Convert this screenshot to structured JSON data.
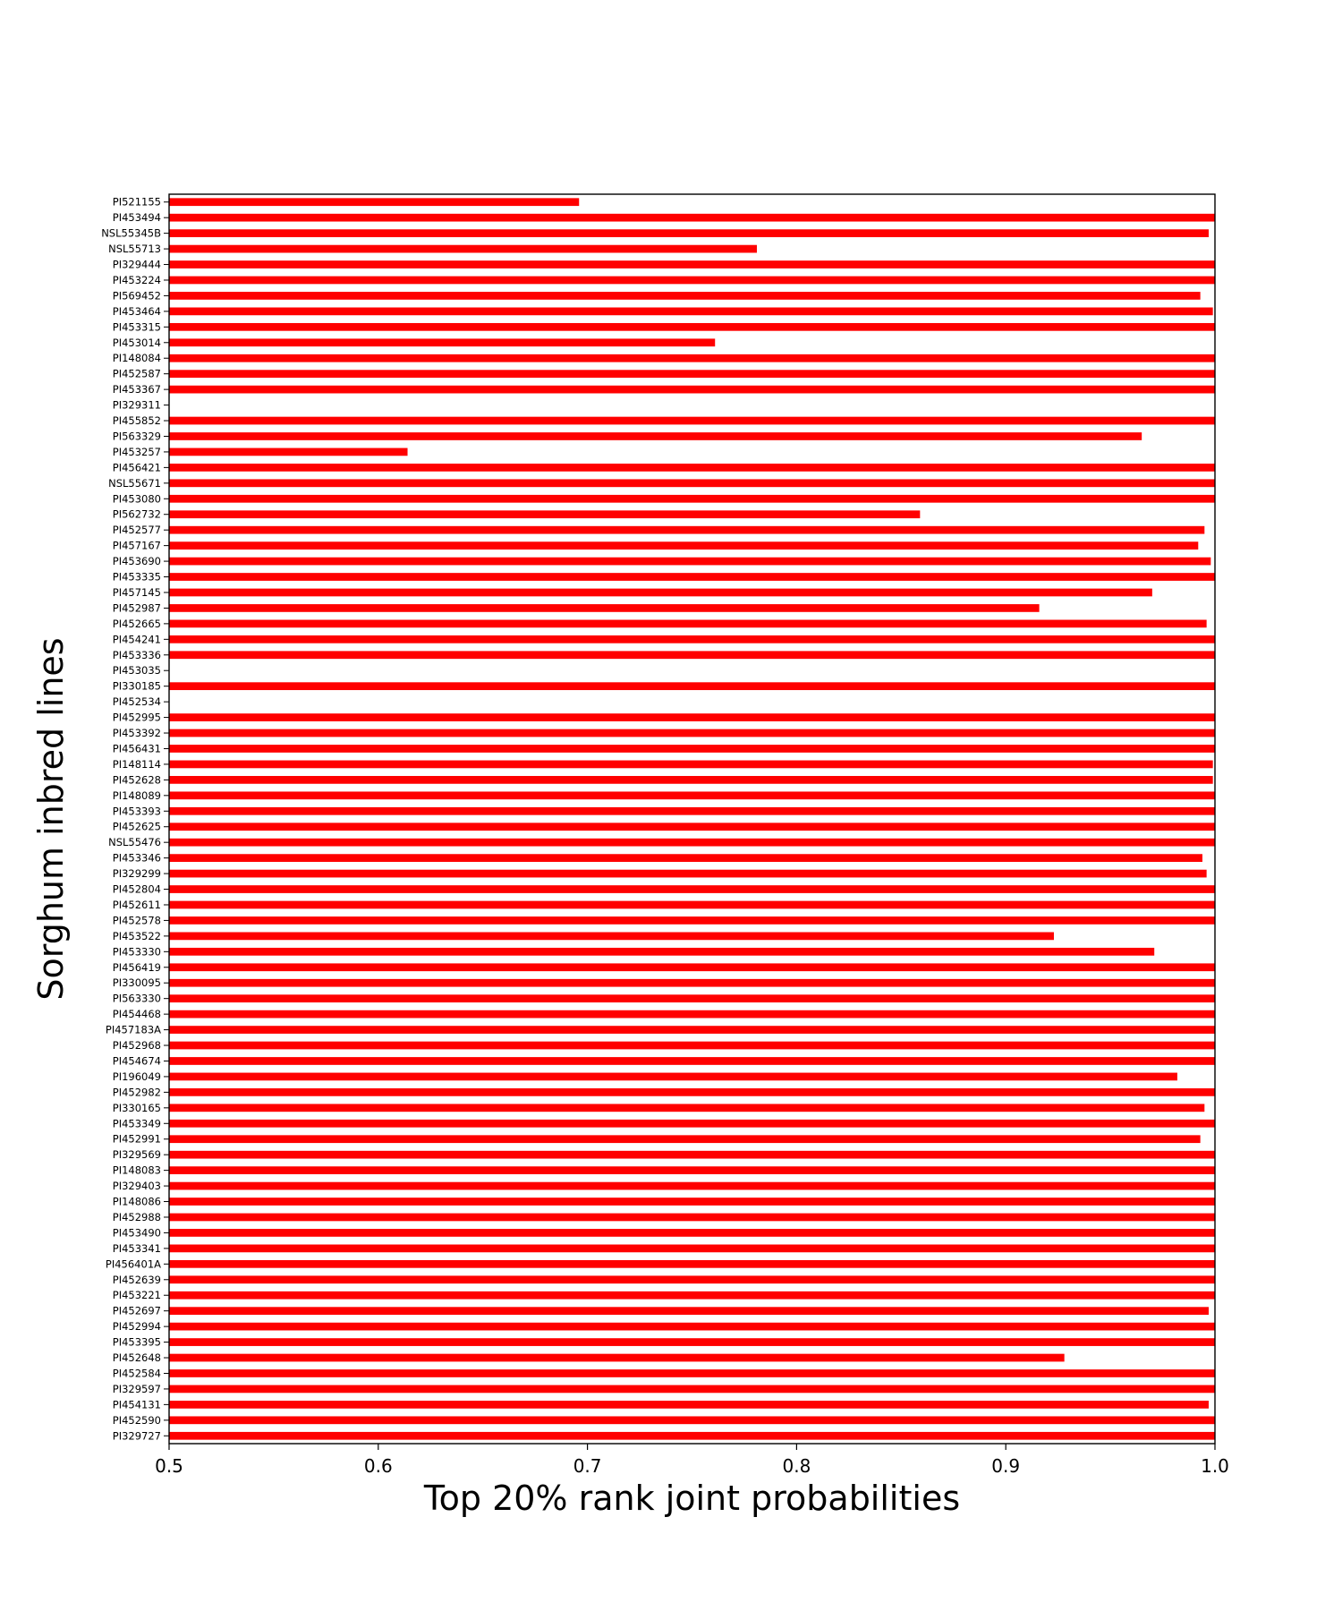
{
  "chart_data": {
    "type": "bar",
    "orientation": "horizontal",
    "xlabel": "Top 20% rank joint probabilities",
    "ylabel": "Sorghum inbred lines",
    "xlim": [
      0.5,
      1.0
    ],
    "xticks": [
      "0.5",
      "0.6",
      "0.7",
      "0.8",
      "0.9",
      "1.0"
    ],
    "grid": false,
    "bar_color": "#ff0000",
    "categories": [
      "PI521155",
      "PI453494",
      "NSL55345B",
      "NSL55713",
      "PI329444",
      "PI453224",
      "PI569452",
      "PI453464",
      "PI453315",
      "PI453014",
      "PI148084",
      "PI452587",
      "PI453367",
      "PI329311",
      "PI455852",
      "PI563329",
      "PI453257",
      "PI456421",
      "NSL55671",
      "PI453080",
      "PI562732",
      "PI452577",
      "PI457167",
      "PI453690",
      "PI453335",
      "PI457145",
      "PI452987",
      "PI452665",
      "PI454241",
      "PI453336",
      "PI453035",
      "PI330185",
      "PI452534",
      "PI452995",
      "PI453392",
      "PI456431",
      "PI148114",
      "PI452628",
      "PI148089",
      "PI453393",
      "PI452625",
      "NSL55476",
      "PI453346",
      "PI329299",
      "PI452804",
      "PI452611",
      "PI452578",
      "PI453522",
      "PI453330",
      "PI456419",
      "PI330095",
      "PI563330",
      "PI454468",
      "PI457183A",
      "PI452968",
      "PI454674",
      "PI196049",
      "PI452982",
      "PI330165",
      "PI453349",
      "PI452991",
      "PI329569",
      "PI148083",
      "PI329403",
      "PI148086",
      "PI452988",
      "PI453490",
      "PI453341",
      "PI456401A",
      "PI452639",
      "PI453221",
      "PI452697",
      "PI452994",
      "PI453395",
      "PI452648",
      "PI452584",
      "PI329597",
      "PI454131",
      "PI452590",
      "PI329727"
    ],
    "values": [
      0.696,
      1.0,
      0.997,
      0.781,
      1.0,
      1.0,
      0.993,
      0.999,
      1.0,
      0.761,
      1.0,
      1.0,
      1.0,
      0.5,
      1.0,
      0.965,
      0.614,
      1.0,
      1.0,
      1.0,
      0.859,
      0.995,
      0.992,
      0.998,
      1.0,
      0.97,
      0.916,
      0.996,
      1.0,
      1.0,
      0.5,
      1.0,
      0.5,
      1.0,
      1.0,
      1.0,
      0.999,
      0.999,
      1.0,
      1.0,
      1.0,
      1.0,
      0.994,
      0.996,
      1.0,
      1.0,
      1.0,
      0.923,
      0.971,
      1.0,
      1.0,
      1.0,
      1.0,
      1.0,
      1.0,
      1.0,
      0.982,
      1.0,
      0.995,
      1.0,
      0.993,
      1.0,
      1.0,
      1.0,
      1.0,
      1.0,
      1.0,
      1.0,
      1.0,
      1.0,
      1.0,
      0.997,
      1.0,
      1.0,
      0.928,
      1.0,
      1.0,
      0.997,
      1.0,
      1.0
    ]
  }
}
